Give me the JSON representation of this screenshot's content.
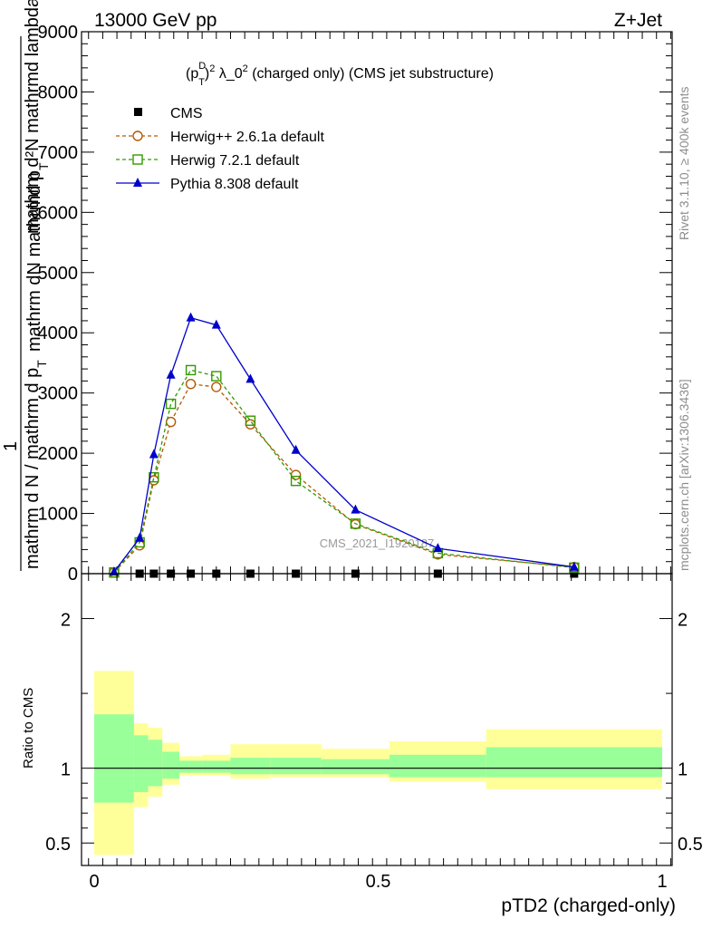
{
  "header": {
    "left": "13000 GeV pp",
    "right": "Z+Jet"
  },
  "side_labels": {
    "rivet": "Rivet 3.1.10, ≥ 400k events",
    "mcplots": "mcplots.cern.ch [arXiv:1306.3436]"
  },
  "chart_data": [
    {
      "type": "line",
      "title_parts": [
        "(p",
        "D",
        "T",
        ")",
        "2",
        " λ_0",
        "2",
        " (charged only) (CMS jet substructure)"
      ],
      "ylabel_top": "mathrm d²N  mathrmd lambda",
      "ylabel_mid_a": "mathrm dN  mathrmd p",
      "ylabel_mid_b": "T",
      "ylabel_one": "1",
      "ylabel_bottom": "mathrm d N / mathrm d p",
      "ylabel_bottom_sub": "T",
      "ylim": [
        0,
        9000
      ],
      "yticks": [
        0,
        1000,
        2000,
        3000,
        4000,
        5000,
        6000,
        7000,
        8000,
        9000
      ],
      "ytick_labels": [
        "0",
        "1000",
        "2000",
        "3000",
        "4000",
        "5000",
        "6000",
        "7000",
        "8000",
        "9000"
      ],
      "xlim": [
        -0.02,
        1.02
      ],
      "watermark": "CMS_2021_I1920187",
      "legend_position": "top-left",
      "series": [
        {
          "name": "CMS",
          "color": "#000000",
          "marker": "square-filled",
          "x": [
            0.035,
            0.08,
            0.105,
            0.135,
            0.17,
            0.215,
            0.275,
            0.355,
            0.46,
            0.605,
            0.845
          ],
          "values": [
            0,
            0,
            0,
            0,
            0,
            0,
            0,
            0,
            0,
            0,
            0
          ]
        },
        {
          "name": "Herwig++ 2.6.1a default",
          "color": "#b35900",
          "marker": "circle-open",
          "dashed": true,
          "x": [
            0.035,
            0.08,
            0.105,
            0.135,
            0.17,
            0.215,
            0.275,
            0.355,
            0.46,
            0.605,
            0.845
          ],
          "values": [
            20,
            470,
            1550,
            2520,
            3150,
            3100,
            2480,
            1640,
            820,
            320,
            110
          ]
        },
        {
          "name": "Herwig 7.2.1 default",
          "color": "#339900",
          "marker": "square-open",
          "dashed": true,
          "x": [
            0.035,
            0.08,
            0.105,
            0.135,
            0.17,
            0.215,
            0.275,
            0.355,
            0.46,
            0.605,
            0.845
          ],
          "values": [
            20,
            520,
            1600,
            2820,
            3380,
            3280,
            2540,
            1540,
            830,
            340,
            100
          ]
        },
        {
          "name": "Pythia 8.308 default",
          "color": "#0000cc",
          "marker": "triangle-filled",
          "dashed": false,
          "x": [
            0.035,
            0.08,
            0.105,
            0.135,
            0.17,
            0.215,
            0.275,
            0.355,
            0.46,
            0.605,
            0.845
          ],
          "values": [
            30,
            590,
            1980,
            3300,
            4250,
            4130,
            3230,
            2050,
            1060,
            420,
            110
          ]
        }
      ]
    },
    {
      "type": "area",
      "ylabel": "Ratio to CMS",
      "xlabel": "pTD2 (charged-only)",
      "ylim": [
        0.35,
        2.3
      ],
      "yticks": [
        0.5,
        1,
        2
      ],
      "ytick_labels": [
        "0.5",
        "1",
        "2"
      ],
      "xticks": [
        0,
        0.5,
        1
      ],
      "xtick_labels": [
        "0",
        "0.5",
        "1"
      ],
      "reference_line": 1,
      "bin_edges": [
        0,
        0.07,
        0.095,
        0.12,
        0.15,
        0.19,
        0.24,
        0.31,
        0.4,
        0.52,
        0.69,
        1.0
      ],
      "inner_band": {
        "color": "#99ff99",
        "lower": [
          0.77,
          0.84,
          0.88,
          0.93,
          0.97,
          0.97,
          0.96,
          0.96,
          0.96,
          0.94,
          0.94
        ],
        "upper": [
          1.36,
          1.22,
          1.19,
          1.11,
          1.05,
          1.05,
          1.07,
          1.07,
          1.06,
          1.09,
          1.14
        ]
      },
      "outer_band": {
        "color": "#ffff99",
        "lower": [
          0.42,
          0.74,
          0.81,
          0.89,
          0.95,
          0.95,
          0.93,
          0.94,
          0.94,
          0.91,
          0.86
        ],
        "upper": [
          1.65,
          1.3,
          1.27,
          1.17,
          1.08,
          1.09,
          1.16,
          1.16,
          1.13,
          1.18,
          1.26
        ]
      }
    }
  ]
}
